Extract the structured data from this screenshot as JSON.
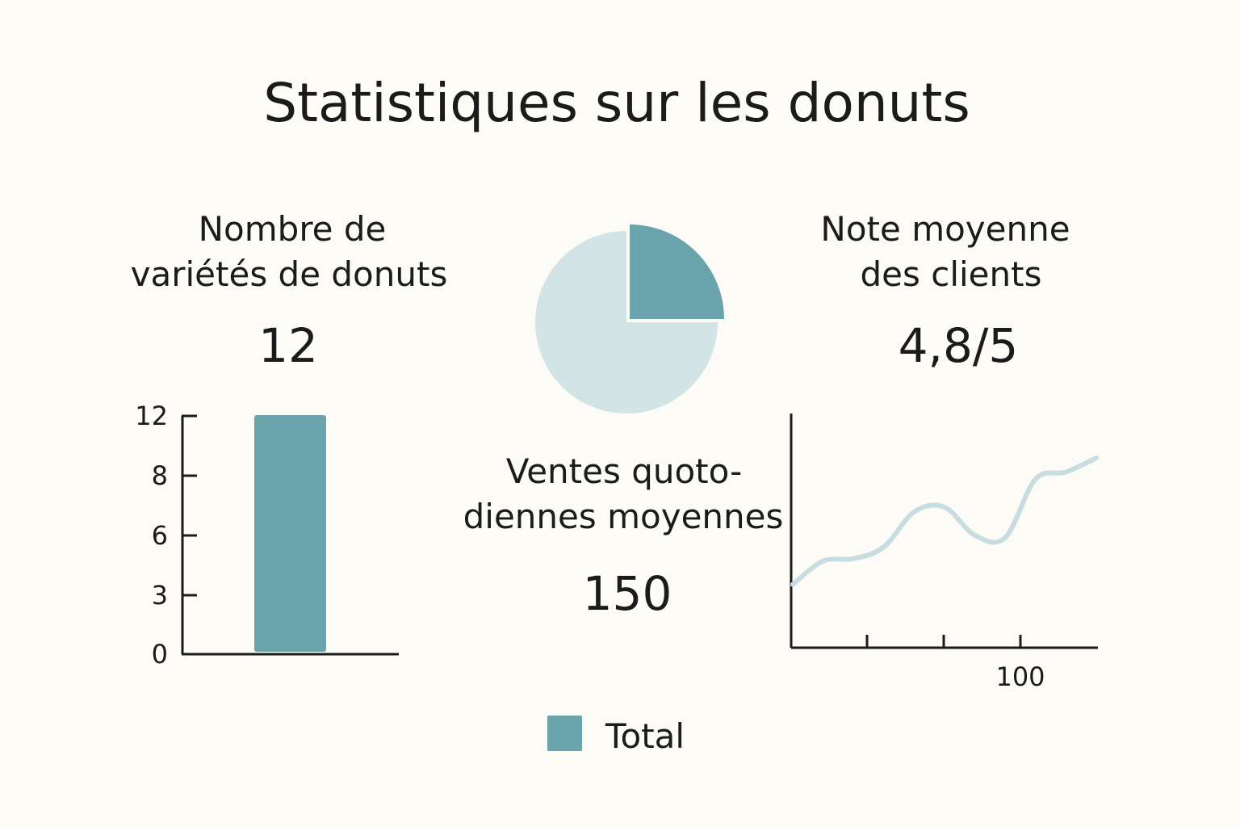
{
  "colors": {
    "background": "#fcfbf6",
    "teal": "#6aa3ab",
    "light_teal": "#d3e4e6",
    "line": "#c8dde1",
    "text": "#1b1b1b"
  },
  "chart_data": {
    "title": "Statistiques sur les donuts",
    "stats": [
      {
        "label_lines": [
          "Nombre de",
          "variétés de donuts"
        ],
        "value": "12"
      },
      {
        "label_lines": [
          "Note moyenne",
          "des clients"
        ],
        "value": "4,8/5"
      },
      {
        "label_lines": [
          "Ventes quoto-",
          "diennes moyennes"
        ],
        "value": "150"
      }
    ],
    "charts": [
      {
        "type": "bar",
        "categories": [
          "Total"
        ],
        "values": [
          12
        ],
        "yticks": [
          0,
          3,
          6,
          8,
          12
        ],
        "ylim": [
          0,
          12
        ]
      },
      {
        "type": "pie",
        "slices": [
          {
            "name": "highlight",
            "value": 25
          },
          {
            "name": "rest",
            "value": 75
          }
        ]
      },
      {
        "type": "line",
        "x_tick_labels": [
          "",
          "",
          "100",
          ""
        ],
        "values": [
          0.27,
          0.37,
          0.38,
          0.43,
          0.58,
          0.6,
          0.48,
          0.47,
          0.72,
          0.75,
          0.81
        ]
      }
    ],
    "legend": [
      {
        "label": "Total",
        "color_key": "teal"
      }
    ]
  }
}
